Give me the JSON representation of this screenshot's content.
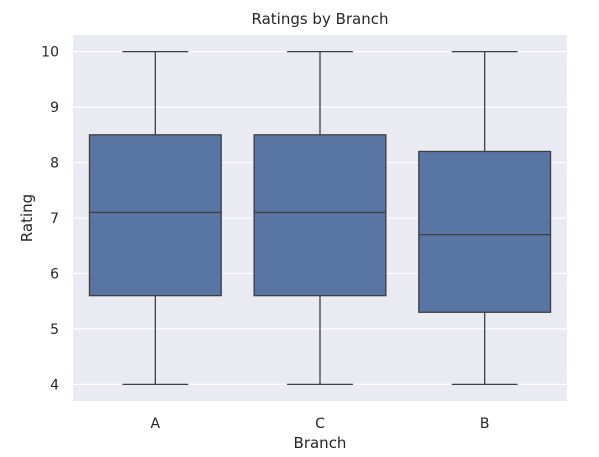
{
  "chart_data": {
    "type": "box",
    "title": "Ratings by Branch",
    "xlabel": "Branch",
    "ylabel": "Rating",
    "categories": [
      "A",
      "C",
      "B"
    ],
    "series": [
      {
        "values": [
          {
            "category": "A",
            "whisker_low": 4.0,
            "q1": 5.6,
            "median": 7.1,
            "q3": 8.5,
            "whisker_high": 10.0
          },
          {
            "category": "C",
            "whisker_low": 4.0,
            "q1": 5.6,
            "median": 7.1,
            "q3": 8.5,
            "whisker_high": 10.0
          },
          {
            "category": "B",
            "whisker_low": 4.0,
            "q1": 5.3,
            "median": 6.7,
            "q3": 8.2,
            "whisker_high": 10.0
          }
        ]
      }
    ],
    "yticks": [
      4,
      5,
      6,
      7,
      8,
      9,
      10
    ],
    "ylim": [
      3.7,
      10.3
    ],
    "grid": true,
    "legend": "none",
    "colors": {
      "box_fill": "#5975a4",
      "box_edge": "#3f3f3f",
      "plot_background": "#eaeaf2",
      "grid": "#ffffff"
    }
  }
}
